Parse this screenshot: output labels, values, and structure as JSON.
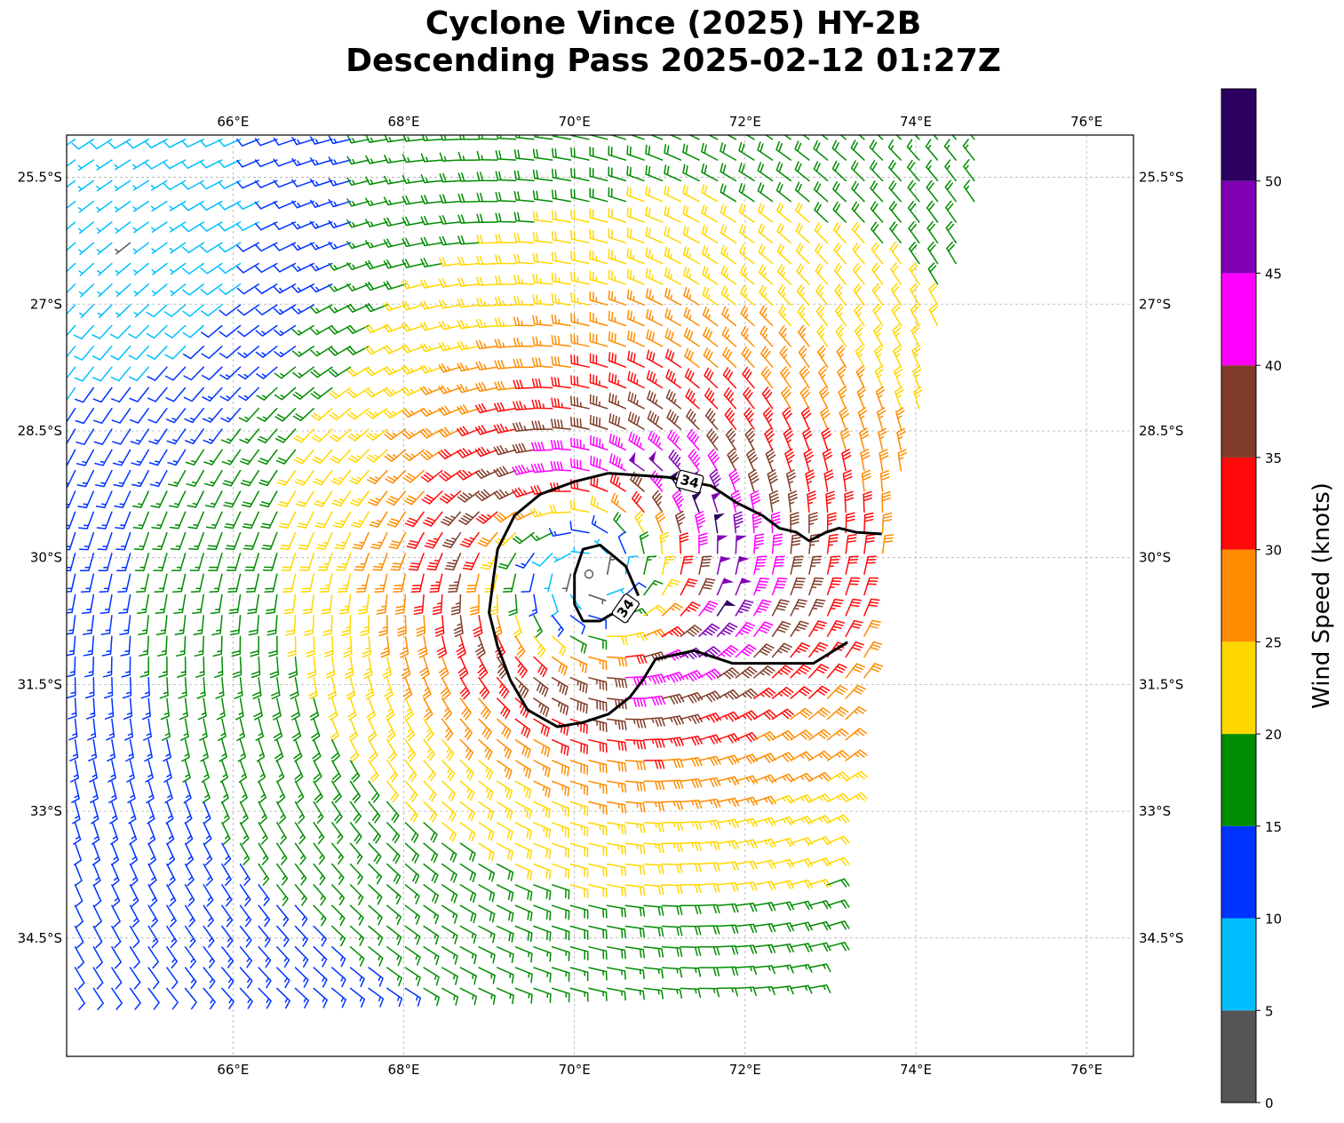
{
  "title": {
    "line1": "Cyclone Vince (2025) HY-2B",
    "line2": "Descending Pass 2025-02-12 01:27Z"
  },
  "map": {
    "lon_range": [
      64.05,
      76.55
    ],
    "lat_range": [
      -35.9,
      -25.0
    ],
    "lon_ticks": [
      {
        "value": 66,
        "label": "66°E"
      },
      {
        "value": 68,
        "label": "68°E"
      },
      {
        "value": 70,
        "label": "70°E"
      },
      {
        "value": 72,
        "label": "72°E"
      },
      {
        "value": 74,
        "label": "74°E"
      },
      {
        "value": 76,
        "label": "76°E"
      }
    ],
    "lat_ticks": [
      {
        "value": -25.5,
        "label": "25.5°S"
      },
      {
        "value": -27,
        "label": "27°S"
      },
      {
        "value": -28.5,
        "label": "28.5°S"
      },
      {
        "value": -30,
        "label": "30°S"
      },
      {
        "value": -31.5,
        "label": "31.5°S"
      },
      {
        "value": -33,
        "label": "33°S"
      },
      {
        "value": -34.5,
        "label": "34.5°S"
      }
    ],
    "grid": true,
    "center": {
      "lon": 70.2,
      "lat": -30.2
    },
    "swath_east_edge": [
      [
        74.9,
        -25.0
      ],
      [
        73.6,
        -30.0
      ],
      [
        72.9,
        -35.1
      ]
    ],
    "swath_south_edge_lat": -35.1
  },
  "contour_34kt": {
    "level_label": "34",
    "outer": [
      [
        70.4,
        -29.0
      ],
      [
        71.1,
        -29.05
      ],
      [
        71.6,
        -29.15
      ],
      [
        71.9,
        -29.35
      ],
      [
        72.2,
        -29.5
      ],
      [
        72.4,
        -29.65
      ],
      [
        72.6,
        -29.7
      ],
      [
        72.75,
        -29.8
      ],
      [
        72.95,
        -29.7
      ],
      [
        73.1,
        -29.65
      ],
      [
        73.3,
        -29.7
      ],
      [
        73.6,
        -29.72
      ]
    ],
    "outer_west": [
      [
        70.4,
        -29.0
      ],
      [
        70.0,
        -29.1
      ],
      [
        69.6,
        -29.25
      ],
      [
        69.3,
        -29.5
      ],
      [
        69.1,
        -29.9
      ],
      [
        69.05,
        -30.25
      ],
      [
        69.0,
        -30.65
      ],
      [
        69.1,
        -31.05
      ],
      [
        69.25,
        -31.45
      ],
      [
        69.45,
        -31.8
      ],
      [
        69.8,
        -32.0
      ],
      [
        70.1,
        -31.95
      ],
      [
        70.4,
        -31.85
      ],
      [
        70.65,
        -31.65
      ],
      [
        70.8,
        -31.45
      ],
      [
        70.95,
        -31.2
      ],
      [
        71.4,
        -31.1
      ],
      [
        71.85,
        -31.25
      ],
      [
        72.3,
        -31.25
      ],
      [
        72.8,
        -31.25
      ],
      [
        73.2,
        -31.0
      ]
    ],
    "inner": [
      [
        70.75,
        -30.45
      ],
      [
        70.6,
        -30.1
      ],
      [
        70.3,
        -29.85
      ],
      [
        70.1,
        -29.9
      ],
      [
        70.0,
        -30.2
      ],
      [
        70.0,
        -30.55
      ],
      [
        70.1,
        -30.75
      ],
      [
        70.3,
        -30.75
      ],
      [
        70.55,
        -30.6
      ]
    ]
  },
  "colorbar": {
    "label": "Wind Speed (knots)",
    "bins": [
      {
        "from": 0,
        "to": 5,
        "color": "#555555"
      },
      {
        "from": 5,
        "to": 10,
        "color": "#00bfff"
      },
      {
        "from": 10,
        "to": 15,
        "color": "#0033ff"
      },
      {
        "from": 15,
        "to": 20,
        "color": "#008c00"
      },
      {
        "from": 20,
        "to": 25,
        "color": "#ffd700"
      },
      {
        "from": 25,
        "to": 30,
        "color": "#ff8c00"
      },
      {
        "from": 30,
        "to": 35,
        "color": "#ff0a0a"
      },
      {
        "from": 35,
        "to": 40,
        "color": "#803c28"
      },
      {
        "from": 40,
        "to": 45,
        "color": "#ff00ff"
      },
      {
        "from": 45,
        "to": 50,
        "color": "#8000b4"
      },
      {
        "from": 50,
        "to": 55,
        "color": "#2b0060"
      }
    ],
    "ticks": [
      {
        "value": 0,
        "label": "0"
      },
      {
        "value": 5,
        "label": "5"
      },
      {
        "value": 10,
        "label": "10"
      },
      {
        "value": 15,
        "label": "15"
      },
      {
        "value": 20,
        "label": "20"
      },
      {
        "value": 25,
        "label": "25"
      },
      {
        "value": 30,
        "label": "30"
      },
      {
        "value": 35,
        "label": "35"
      },
      {
        "value": 40,
        "label": "40"
      },
      {
        "value": 45,
        "label": "45"
      },
      {
        "value": 50,
        "label": "50"
      }
    ],
    "max": 55
  }
}
